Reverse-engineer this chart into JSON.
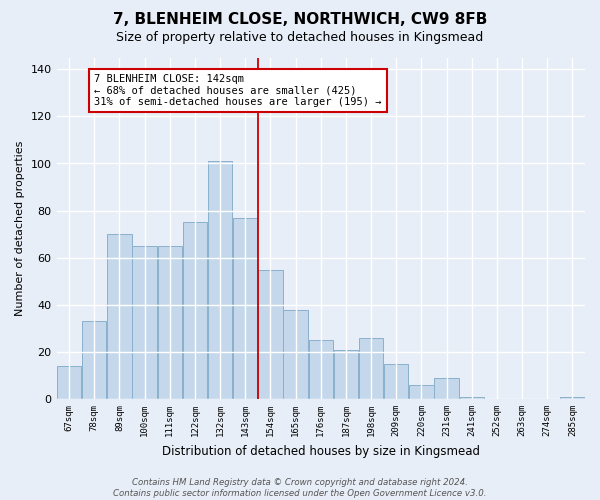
{
  "title": "7, BLENHEIM CLOSE, NORTHWICH, CW9 8FB",
  "subtitle": "Size of property relative to detached houses in Kingsmead",
  "xlabel": "Distribution of detached houses by size in Kingsmead",
  "ylabel": "Number of detached properties",
  "bar_labels": [
    "67sqm",
    "78sqm",
    "89sqm",
    "100sqm",
    "111sqm",
    "122sqm",
    "132sqm",
    "143sqm",
    "154sqm",
    "165sqm",
    "176sqm",
    "187sqm",
    "198sqm",
    "209sqm",
    "220sqm",
    "231sqm",
    "241sqm",
    "252sqm",
    "263sqm",
    "274sqm",
    "285sqm"
  ],
  "bar_heights": [
    14,
    33,
    70,
    65,
    65,
    75,
    101,
    77,
    55,
    38,
    25,
    21,
    26,
    15,
    6,
    9,
    1,
    0,
    0,
    0,
    1
  ],
  "bar_color": "#c5d8eb",
  "bar_edge_color": "#8ab0cc",
  "bg_color": "#e8eef7",
  "grid_color": "#ffffff",
  "vline_x": 7.5,
  "vline_color": "#cc0000",
  "annotation_text": "7 BLENHEIM CLOSE: 142sqm\n← 68% of detached houses are smaller (425)\n31% of semi-detached houses are larger (195) →",
  "annotation_box_color": "#ffffff",
  "annotation_box_edge": "#cc0000",
  "footer_text": "Contains HM Land Registry data © Crown copyright and database right 2024.\nContains public sector information licensed under the Open Government Licence v3.0.",
  "ylim": [
    0,
    145
  ],
  "yticks": [
    0,
    20,
    40,
    60,
    80,
    100,
    120,
    140
  ],
  "title_fontsize": 11,
  "subtitle_fontsize": 9,
  "ylabel_fontsize": 8,
  "xlabel_fontsize": 8.5
}
